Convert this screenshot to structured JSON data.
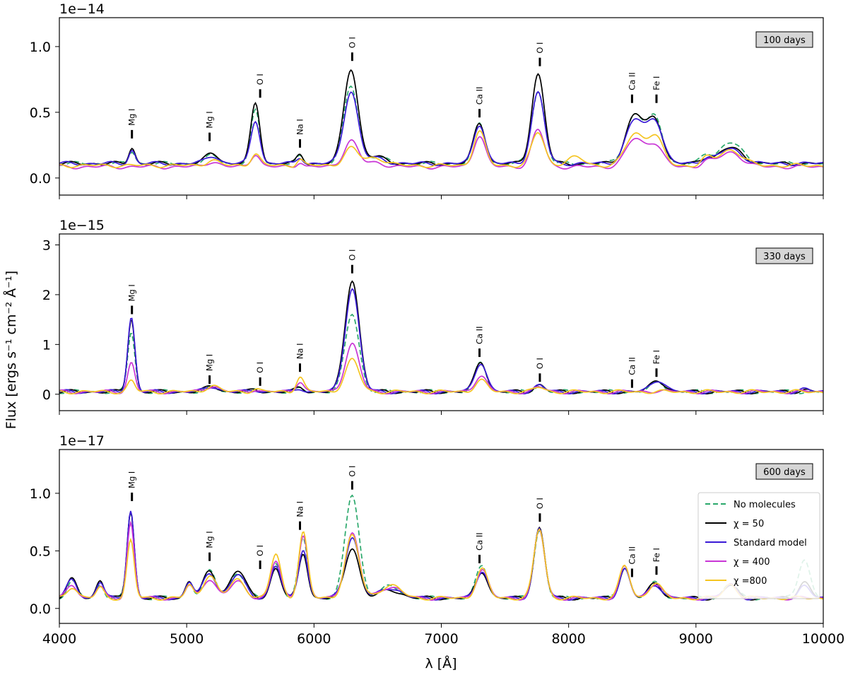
{
  "chart_data": {
    "type": "line",
    "x_range": [
      4000,
      10000
    ],
    "x_ticks": [
      4000,
      5000,
      6000,
      7000,
      8000,
      9000,
      10000
    ],
    "x_tick_labels": [
      "4000",
      "5000",
      "6000",
      "7000",
      "8000",
      "9000",
      "10000"
    ],
    "xlabel": "λ [Å]",
    "ylabel": "Flux [ergs s⁻¹ cm⁻² Å⁻¹]",
    "series_styles": [
      {
        "key": "nomol",
        "name": "No molecules",
        "color": "#2aa86b",
        "dash": "7,4"
      },
      {
        "key": "chi50",
        "name": "χ = 50",
        "color": "#000000",
        "dash": ""
      },
      {
        "key": "std",
        "name": "Standard model",
        "color": "#3a1ad6",
        "dash": ""
      },
      {
        "key": "chi400",
        "name": "χ = 400",
        "color": "#c936d6",
        "dash": ""
      },
      {
        "key": "chi800",
        "name": "χ =800",
        "color": "#f5c522",
        "dash": ""
      }
    ],
    "panels": [
      {
        "label": "100 days",
        "exponent": "1e−14",
        "ylim": [
          -0.13,
          1.22
        ],
        "y_ticks": [
          0.0,
          0.5,
          1.0
        ],
        "y_tick_labels": [
          "0.0",
          "0.5",
          "1.0"
        ],
        "line_ids": [
          {
            "text": "Mg I",
            "x": 4570,
            "y": 0.29
          },
          {
            "text": "Mg I",
            "x": 5180,
            "y": 0.27
          },
          {
            "text": "O I",
            "x": 5577,
            "y": 0.6
          },
          {
            "text": "Na I",
            "x": 5890,
            "y": 0.22
          },
          {
            "text": "O I",
            "x": 6300,
            "y": 0.88
          },
          {
            "text": "Ca II",
            "x": 7300,
            "y": 0.45
          },
          {
            "text": "O I",
            "x": 7774,
            "y": 0.84
          },
          {
            "text": "Ca II",
            "x": 8498,
            "y": 0.56
          },
          {
            "text": "Fe I",
            "x": 8690,
            "y": 0.56
          }
        ],
        "baselines": {
          "nomol": 0.11,
          "chi50": 0.11,
          "std": 0.11,
          "chi400": 0.085,
          "chi800": 0.095
        },
        "peaks": [
          {
            "x": 4570,
            "w": 25,
            "amp": {
              "nomol": 0.09,
              "chi50": 0.12,
              "std": 0.1,
              "chi400": 0.0,
              "chi800": 0.0
            }
          },
          {
            "x": 5200,
            "w": 50,
            "amp": {
              "nomol": 0.06,
              "chi50": 0.08,
              "std": 0.06,
              "chi400": 0.04,
              "chi800": 0.04
            }
          },
          {
            "x": 5540,
            "w": 35,
            "amp": {
              "nomol": 0.4,
              "chi50": 0.46,
              "std": 0.33,
              "chi400": 0.1,
              "chi800": 0.09
            }
          },
          {
            "x": 5890,
            "w": 25,
            "amp": {
              "nomol": 0.05,
              "chi50": 0.07,
              "std": 0.05,
              "chi400": 0.04,
              "chi800": 0.05
            }
          },
          {
            "x": 6290,
            "w": 55,
            "amp": {
              "nomol": 0.59,
              "chi50": 0.72,
              "std": 0.55,
              "chi400": 0.2,
              "chi800": 0.13
            }
          },
          {
            "x": 6480,
            "w": 80,
            "amp": {
              "nomol": 0.05,
              "chi50": 0.05,
              "std": 0.04,
              "chi400": 0.03,
              "chi800": 0.06
            }
          },
          {
            "x": 7300,
            "w": 45,
            "amp": {
              "nomol": 0.3,
              "chi50": 0.31,
              "std": 0.3,
              "chi400": 0.24,
              "chi800": 0.26
            }
          },
          {
            "x": 7760,
            "w": 50,
            "amp": {
              "nomol": 0.55,
              "chi50": 0.68,
              "std": 0.54,
              "chi400": 0.28,
              "chi800": 0.25
            }
          },
          {
            "x": 8050,
            "w": 70,
            "amp": {
              "nomol": 0.0,
              "chi50": 0.0,
              "std": 0.0,
              "chi400": 0.0,
              "chi800": 0.06
            }
          },
          {
            "x": 8520,
            "w": 70,
            "amp": {
              "nomol": 0.37,
              "chi50": 0.37,
              "std": 0.33,
              "chi400": 0.21,
              "chi800": 0.24
            }
          },
          {
            "x": 8680,
            "w": 60,
            "amp": {
              "nomol": 0.33,
              "chi50": 0.32,
              "std": 0.32,
              "chi400": 0.17,
              "chi800": 0.22
            }
          },
          {
            "x": 9080,
            "w": 40,
            "amp": {
              "nomol": 0.06,
              "chi50": 0.04,
              "std": 0.04,
              "chi400": 0.04,
              "chi800": 0.05
            }
          },
          {
            "x": 9270,
            "w": 90,
            "amp": {
              "nomol": 0.16,
              "chi50": 0.12,
              "std": 0.11,
              "chi400": 0.11,
              "chi800": 0.12
            }
          }
        ]
      },
      {
        "label": "330 days",
        "exponent": "1e−15",
        "ylim": [
          -0.33,
          3.22
        ],
        "y_ticks": [
          0,
          1,
          2,
          3
        ],
        "y_tick_labels": [
          "0",
          "1",
          "2",
          "3"
        ],
        "line_ids": [
          {
            "text": "Mg I",
            "x": 4570,
            "y": 1.58
          },
          {
            "text": "Mg I",
            "x": 5180,
            "y": 0.18
          },
          {
            "text": "O I",
            "x": 5577,
            "y": 0.14
          },
          {
            "text": "Na I",
            "x": 5890,
            "y": 0.42
          },
          {
            "text": "O I",
            "x": 6300,
            "y": 2.4
          },
          {
            "text": "Ca II",
            "x": 7300,
            "y": 0.72
          },
          {
            "text": "O I",
            "x": 7774,
            "y": 0.22
          },
          {
            "text": "Ca II",
            "x": 8498,
            "y": 0.1
          },
          {
            "text": "Fe I",
            "x": 8690,
            "y": 0.32
          }
        ],
        "baselines": {
          "nomol": 0.05,
          "chi50": 0.05,
          "std": 0.05,
          "chi400": 0.05,
          "chi800": 0.05
        },
        "peaks": [
          {
            "x": 4565,
            "w": 28,
            "amp": {
              "nomol": 1.2,
              "chi50": 1.47,
              "std": 1.5,
              "chi400": 0.58,
              "chi800": 0.22
            }
          },
          {
            "x": 5200,
            "w": 50,
            "amp": {
              "nomol": 0.08,
              "chi50": 0.11,
              "std": 0.11,
              "chi400": 0.12,
              "chi800": 0.12
            }
          },
          {
            "x": 5540,
            "w": 30,
            "amp": {
              "nomol": 0.02,
              "chi50": 0.04,
              "std": 0.04,
              "chi400": 0.05,
              "chi800": 0.06
            }
          },
          {
            "x": 5890,
            "w": 30,
            "amp": {
              "nomol": 0.05,
              "chi50": 0.09,
              "std": 0.07,
              "chi400": 0.22,
              "chi800": 0.3
            }
          },
          {
            "x": 6300,
            "w": 55,
            "amp": {
              "nomol": 1.57,
              "chi50": 2.25,
              "std": 2.08,
              "chi400": 0.96,
              "chi800": 0.64
            }
          },
          {
            "x": 7310,
            "w": 45,
            "amp": {
              "nomol": 0.58,
              "chi50": 0.61,
              "std": 0.59,
              "chi400": 0.33,
              "chi800": 0.23
            }
          },
          {
            "x": 7770,
            "w": 40,
            "amp": {
              "nomol": 0.12,
              "chi50": 0.14,
              "std": 0.13,
              "chi400": 0.09,
              "chi800": 0.09
            }
          },
          {
            "x": 8700,
            "w": 55,
            "amp": {
              "nomol": 0.19,
              "chi50": 0.23,
              "std": 0.24,
              "chi400": 0.02,
              "chi800": 0.0
            }
          },
          {
            "x": 9850,
            "w": 40,
            "amp": {
              "nomol": 0.0,
              "chi50": 0.04,
              "std": 0.05,
              "chi400": 0.0,
              "chi800": 0.0
            }
          }
        ]
      },
      {
        "label": "600 days",
        "exponent": "1e−17",
        "ylim": [
          -0.13,
          1.38
        ],
        "y_ticks": [
          0.0,
          0.5,
          1.0
        ],
        "y_tick_labels": [
          "0.0",
          "0.5",
          "1.0"
        ],
        "line_ids": [
          {
            "text": "Mg I",
            "x": 4570,
            "y": 0.92
          },
          {
            "text": "Mg I",
            "x": 5180,
            "y": 0.4
          },
          {
            "text": "O I",
            "x": 5577,
            "y": 0.33
          },
          {
            "text": "Na I",
            "x": 5890,
            "y": 0.67
          },
          {
            "text": "O I",
            "x": 6300,
            "y": 1.02
          },
          {
            "text": "Ca II",
            "x": 7300,
            "y": 0.38
          },
          {
            "text": "O I",
            "x": 7774,
            "y": 0.74
          },
          {
            "text": "Ca II",
            "x": 8498,
            "y": 0.26
          },
          {
            "text": "Fe I",
            "x": 8690,
            "y": 0.28
          }
        ],
        "baselines": {
          "nomol": 0.09,
          "chi50": 0.09,
          "std": 0.09,
          "chi400": 0.09,
          "chi800": 0.09
        },
        "peaks": [
          {
            "x": 4100,
            "w": 40,
            "amp": {
              "nomol": 0.14,
              "chi50": 0.16,
              "std": 0.16,
              "chi400": 0.12,
              "chi800": 0.1
            }
          },
          {
            "x": 4320,
            "w": 30,
            "amp": {
              "nomol": 0.12,
              "chi50": 0.16,
              "std": 0.14,
              "chi400": 0.1,
              "chi800": 0.09
            }
          },
          {
            "x": 4560,
            "w": 28,
            "amp": {
              "nomol": 0.75,
              "chi50": 0.76,
              "std": 0.76,
              "chi400": 0.65,
              "chi800": 0.5
            }
          },
          {
            "x": 5020,
            "w": 30,
            "amp": {
              "nomol": 0.14,
              "chi50": 0.15,
              "std": 0.14,
              "chi400": 0.11,
              "chi800": 0.11
            }
          },
          {
            "x": 5180,
            "w": 50,
            "amp": {
              "nomol": 0.23,
              "chi50": 0.23,
              "std": 0.22,
              "chi400": 0.17,
              "chi800": 0.2
            }
          },
          {
            "x": 5400,
            "w": 60,
            "amp": {
              "nomol": 0.22,
              "chi50": 0.24,
              "std": 0.2,
              "chi400": 0.14,
              "chi800": 0.16
            }
          },
          {
            "x": 5700,
            "w": 40,
            "amp": {
              "nomol": 0.3,
              "chi50": 0.26,
              "std": 0.28,
              "chi400": 0.32,
              "chi800": 0.38
            }
          },
          {
            "x": 5915,
            "w": 35,
            "amp": {
              "nomol": 0.52,
              "chi50": 0.39,
              "std": 0.43,
              "chi400": 0.55,
              "chi800": 0.57
            }
          },
          {
            "x": 6300,
            "w": 55,
            "amp": {
              "nomol": 0.9,
              "chi50": 0.44,
              "std": 0.53,
              "chi400": 0.56,
              "chi800": 0.54
            }
          },
          {
            "x": 6600,
            "w": 80,
            "amp": {
              "nomol": 0.1,
              "chi50": 0.07,
              "std": 0.09,
              "chi400": 0.1,
              "chi800": 0.11
            }
          },
          {
            "x": 7320,
            "w": 45,
            "amp": {
              "nomol": 0.28,
              "chi50": 0.23,
              "std": 0.24,
              "chi400": 0.25,
              "chi800": 0.25
            }
          },
          {
            "x": 7770,
            "w": 42,
            "amp": {
              "nomol": 0.59,
              "chi50": 0.61,
              "std": 0.6,
              "chi400": 0.59,
              "chi800": 0.6
            }
          },
          {
            "x": 8440,
            "w": 40,
            "amp": {
              "nomol": 0.27,
              "chi50": 0.26,
              "std": 0.25,
              "chi400": 0.27,
              "chi800": 0.28
            }
          },
          {
            "x": 8680,
            "w": 50,
            "amp": {
              "nomol": 0.13,
              "chi50": 0.13,
              "std": 0.12,
              "chi400": 0.13,
              "chi800": 0.13
            }
          },
          {
            "x": 9270,
            "w": 50,
            "amp": {
              "nomol": 0.13,
              "chi50": 0.11,
              "std": 0.11,
              "chi400": 0.12,
              "chi800": 0.12
            }
          },
          {
            "x": 9850,
            "w": 45,
            "amp": {
              "nomol": 0.34,
              "chi50": 0.14,
              "std": 0.1,
              "chi400": 0.0,
              "chi800": 0.0
            }
          }
        ]
      }
    ]
  }
}
